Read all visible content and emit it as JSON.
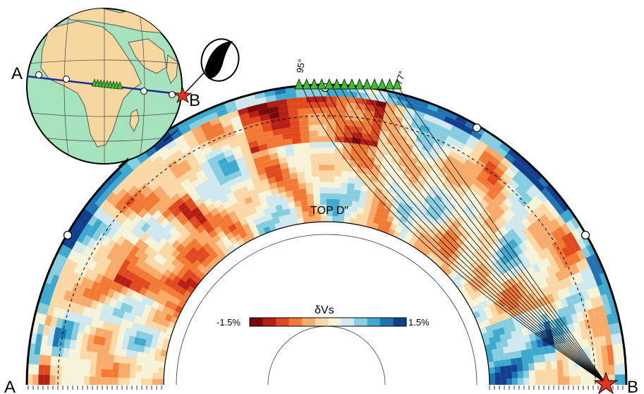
{
  "labels": {
    "end_a": "A",
    "end_b": "B",
    "globe_a": "A",
    "globe_b": "B",
    "top_d": "TOP D″",
    "angle_left": "95°",
    "angle_right": "77°"
  },
  "colorbar": {
    "title": "δVs",
    "min_label": "-1.5%",
    "max_label": "1.5%",
    "colors": [
      "#7a0a0a",
      "#b61f15",
      "#e14a1e",
      "#f27a35",
      "#f8ab6b",
      "#fbd8a6",
      "#f7f3d9",
      "#cfe9ee",
      "#86cde0",
      "#3ea9cf",
      "#1f74b4",
      "#123f8e"
    ]
  },
  "colors": {
    "slow": "#c0392b",
    "fast": "#1b4f9e",
    "neutral": "#f3eed4",
    "ocean": "#a6e3bd",
    "land": "#f6d7a0",
    "station": "#3bbf2a",
    "event": "#e8321f",
    "profile_line": "#1a2a9e"
  },
  "icons": {
    "stations": "triangle-icon",
    "event": "star-icon",
    "mechanism": "beachball-icon"
  }
}
